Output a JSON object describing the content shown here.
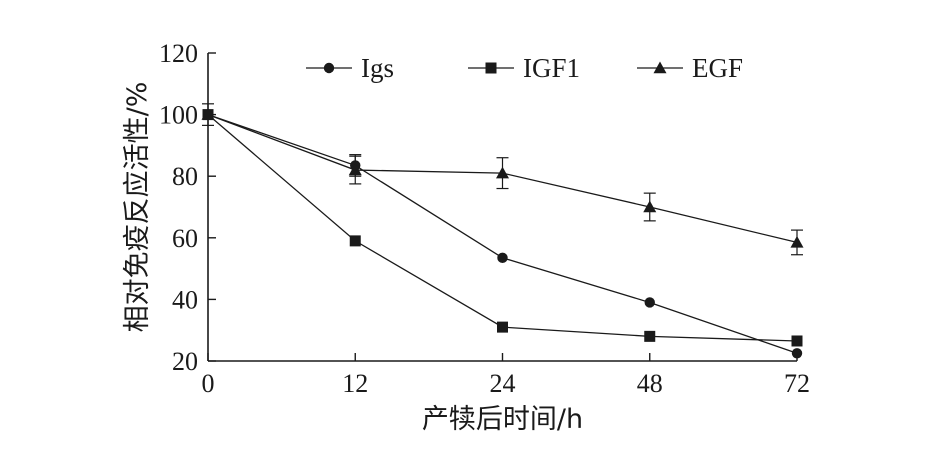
{
  "chart_data": {
    "type": "line",
    "categories": [
      "0",
      "12",
      "24",
      "48",
      "72"
    ],
    "xlabel": "产犊后时间/h",
    "ylabel": "相对免疫反应活性/%",
    "ylim": [
      20,
      120
    ],
    "yticks": [
      20,
      40,
      60,
      80,
      100,
      120
    ],
    "grid": false,
    "legend_position": "top",
    "series": [
      {
        "name": "Igs",
        "marker": "circle",
        "values": [
          100,
          83.5,
          53.5,
          39,
          22.5
        ],
        "error": [
          3.5,
          3.5,
          0,
          0,
          0
        ]
      },
      {
        "name": "IGF1",
        "marker": "square",
        "values": [
          100,
          59,
          31,
          28,
          26.5
        ],
        "error": [
          0,
          0,
          0,
          0,
          0
        ]
      },
      {
        "name": "EGF",
        "marker": "triangle",
        "values": [
          100,
          82,
          81,
          70,
          58.5
        ],
        "error": [
          0,
          4.5,
          5,
          4.5,
          4
        ]
      }
    ]
  }
}
